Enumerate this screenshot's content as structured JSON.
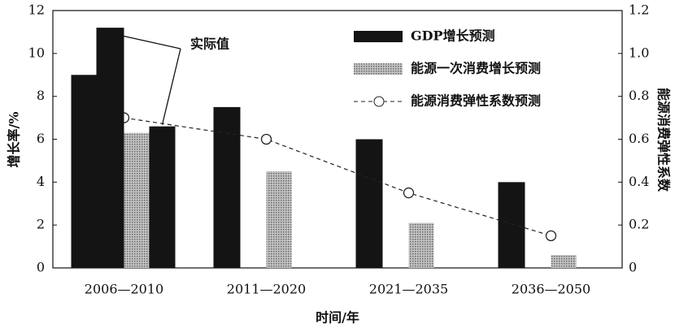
{
  "chart_data": {
    "type": "bar",
    "xlabel": "时间/年",
    "ylabel": "增长率/%",
    "y2label": "能源消费弹性系数",
    "categories": [
      "2006—2010",
      "2011—2020",
      "2021—2035",
      "2036—2050"
    ],
    "series": [
      {
        "name": "GDP增长预测",
        "color": "#141414",
        "type": "bar",
        "values": [
          9,
          7.5,
          6,
          4
        ]
      },
      {
        "name": "能源一次消费增长预测",
        "color": "#a8a8a8",
        "type": "bar",
        "values": [
          6.3,
          4.5,
          2.1,
          0.6
        ]
      },
      {
        "name": "能源消费弹性系数预测",
        "color": "#222222",
        "type": "line",
        "axis": "y2",
        "values": [
          0.7,
          0.6,
          0.35,
          0.15
        ]
      }
    ],
    "annotation": {
      "text": "实际值",
      "gdp_actual": 11.2,
      "energy_actual": 6.6
    },
    "ylim": [
      0,
      12
    ],
    "yticks": [
      0,
      2,
      4,
      6,
      8,
      10,
      12
    ],
    "y2lim": [
      0,
      1.2
    ],
    "y2ticks": [
      0,
      0.2,
      0.4,
      0.6,
      0.8,
      {
        "value": 1,
        "label": "1.0"
      },
      1.2
    ],
    "legend": "upper right"
  }
}
